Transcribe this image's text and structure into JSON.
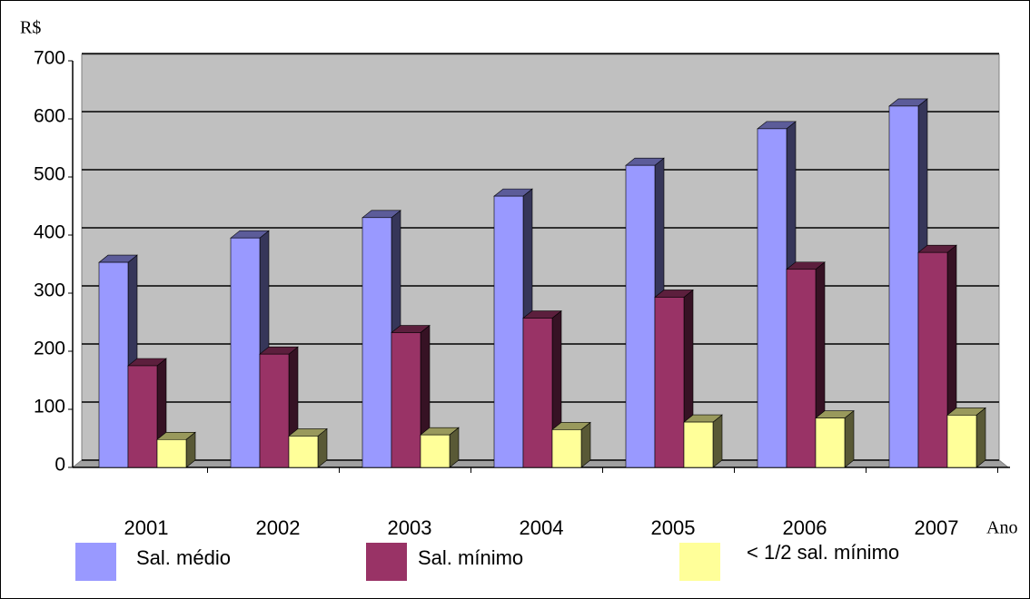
{
  "chart_data": {
    "type": "bar",
    "ylabel": "R$",
    "xlabel": "Ano",
    "categories": [
      "2001",
      "2002",
      "2003",
      "2004",
      "2005",
      "2006",
      "2007"
    ],
    "series": [
      {
        "name": "Sal. médio",
        "color": "#9999ff",
        "values": [
          353,
          395,
          430,
          467,
          520,
          583,
          622
        ]
      },
      {
        "name": "Sal. mínimo",
        "color": "#993366",
        "values": [
          175,
          195,
          232,
          257,
          293,
          341,
          370
        ]
      },
      {
        "name": "< 1/2 sal. mínimo",
        "color": "#ffff99",
        "values": [
          48,
          54,
          56,
          65,
          78,
          85,
          90
        ]
      }
    ],
    "ylim": [
      0,
      700
    ],
    "yticks": [
      0,
      100,
      200,
      300,
      400,
      500,
      600,
      700
    ],
    "grid": true,
    "legend": "bottom"
  }
}
